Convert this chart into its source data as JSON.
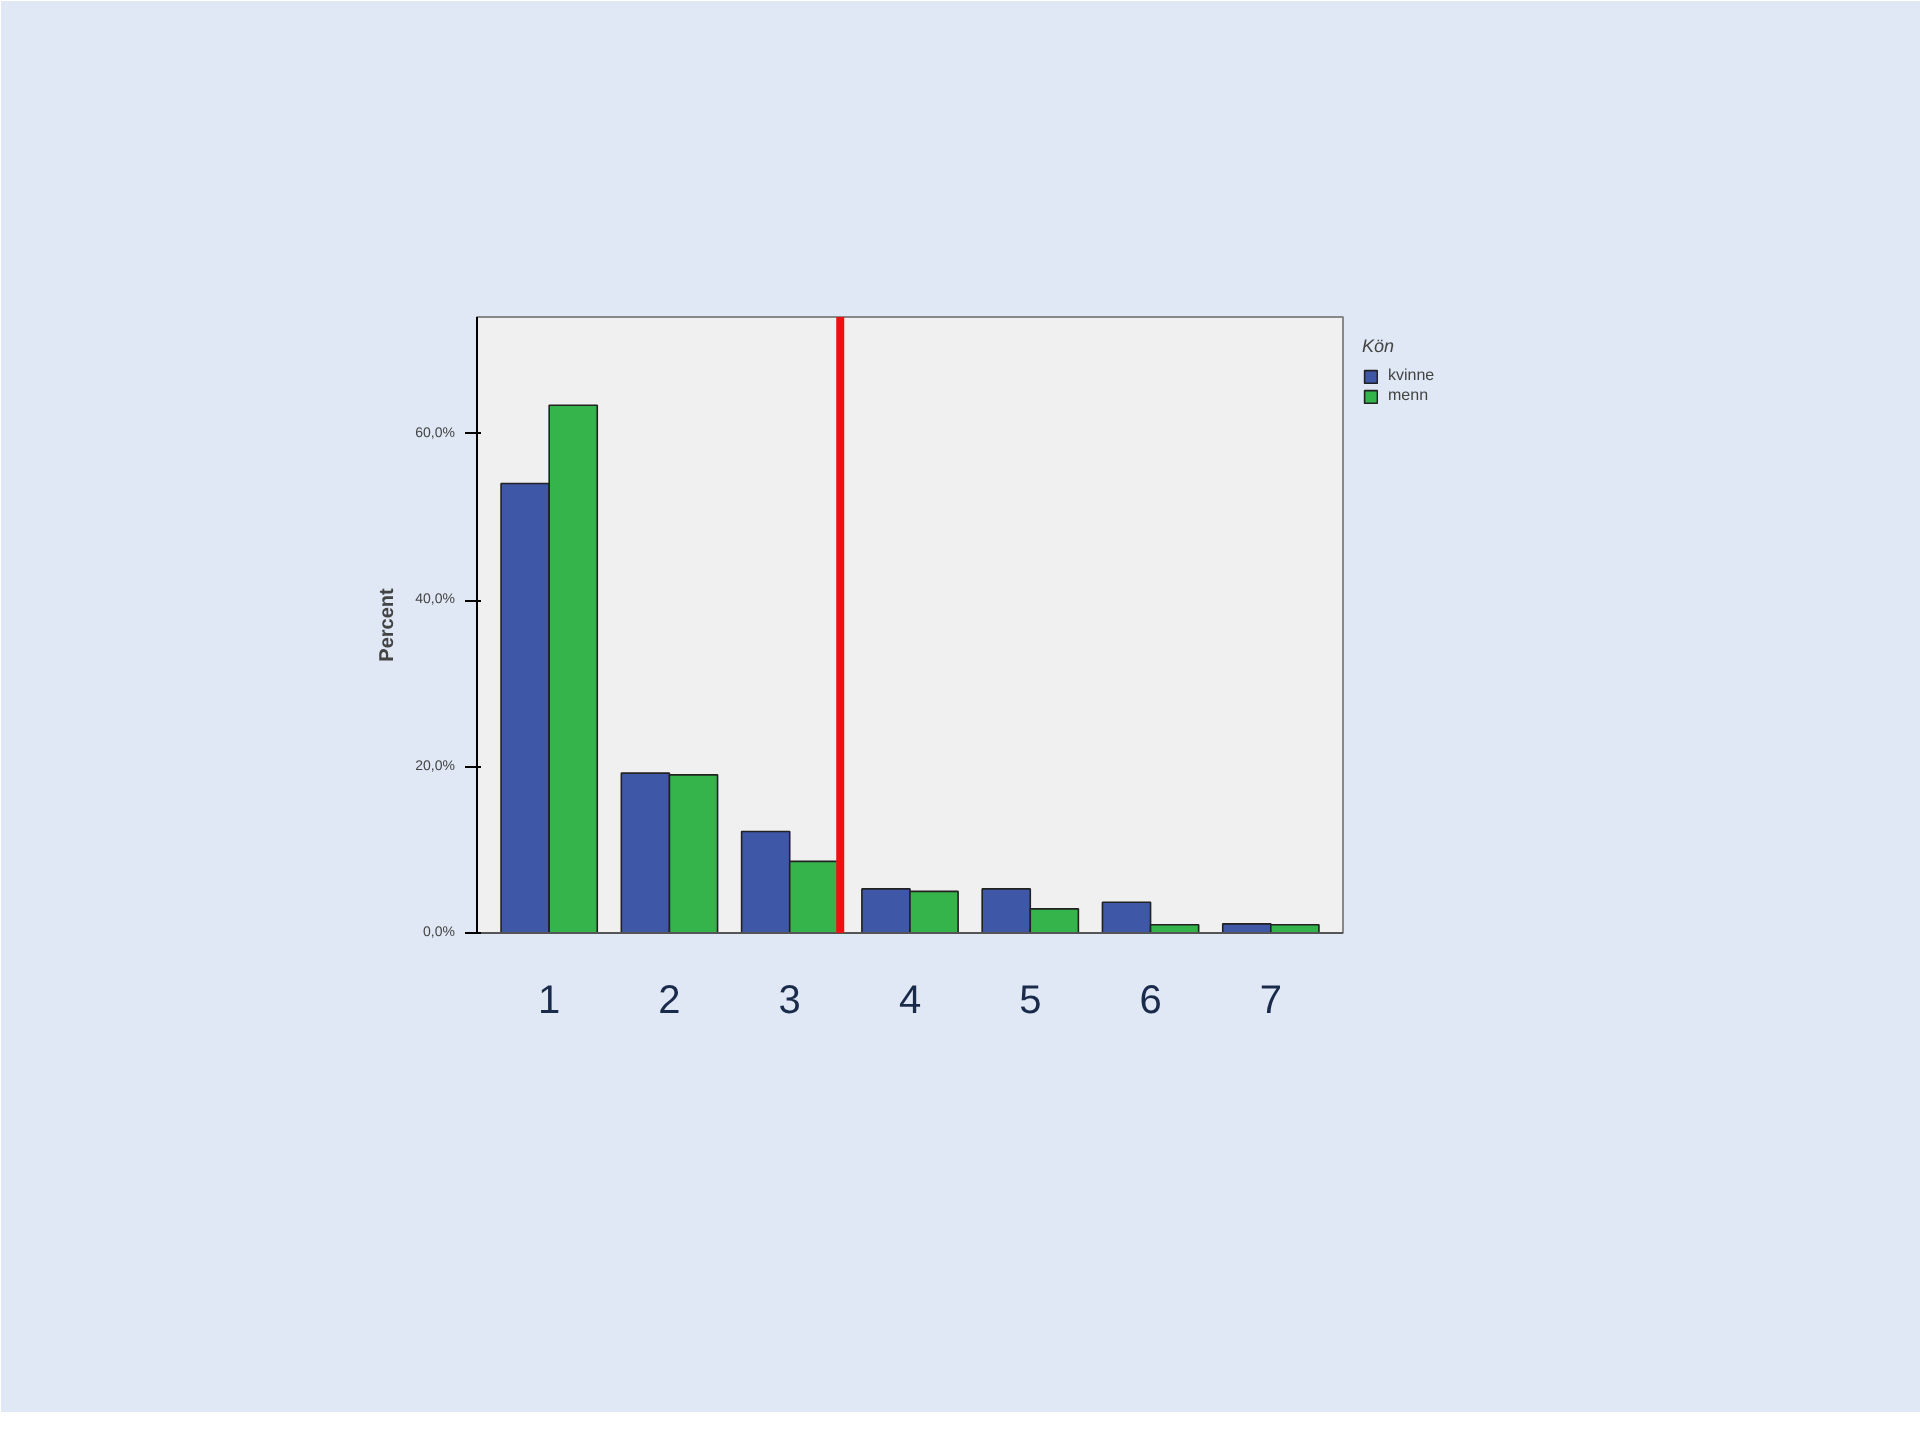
{
  "chart_data": {
    "type": "bar",
    "ylabel": "Percent",
    "legend_title": "Kön",
    "x": [
      1,
      2,
      3,
      4,
      5,
      6,
      7
    ],
    "series": [
      {
        "name": "kvinne",
        "color": "#3f57a7",
        "values": [
          54.0,
          19.2,
          12.2,
          5.3,
          5.3,
          3.7,
          1.1
        ]
      },
      {
        "name": "menn",
        "color": "#34b44a",
        "values": [
          63.4,
          19.0,
          8.6,
          5.0,
          2.9,
          1.0,
          1.0
        ]
      }
    ],
    "xlim": [
      0.4,
      7.6
    ],
    "xticks": [
      1,
      2,
      3,
      4,
      5,
      6,
      7
    ],
    "ylim": [
      0,
      74
    ],
    "yticks": [
      {
        "value": 0,
        "label": "0,0%"
      },
      {
        "value": 20,
        "label": "20,0%"
      },
      {
        "value": 40,
        "label": "40,0%"
      },
      {
        "value": 60,
        "label": "60,0%"
      }
    ],
    "ref_lines": [
      {
        "axis": "x",
        "value": 3.42,
        "color": "#ee1111"
      }
    ],
    "grid": false,
    "legend": "top right"
  }
}
